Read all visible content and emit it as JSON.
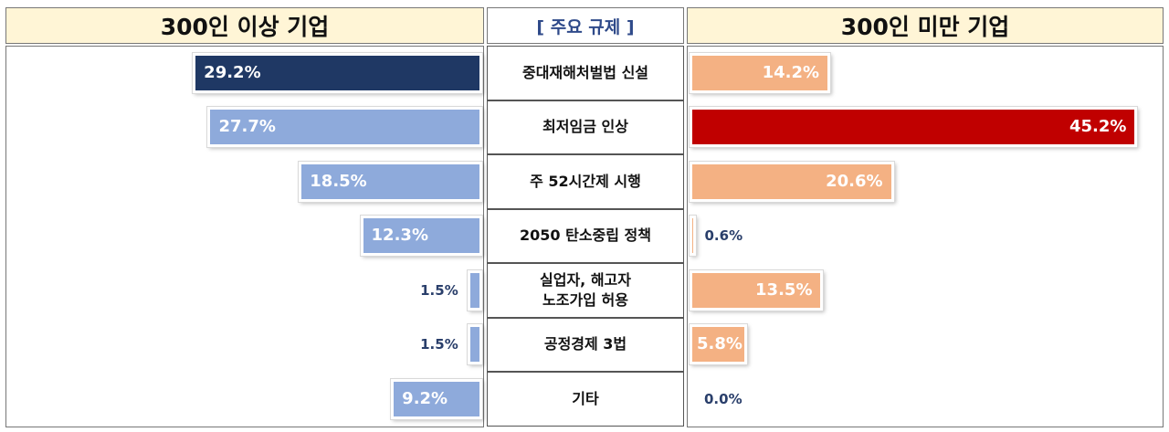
{
  "header": {
    "left_title": "300인 이상 기업",
    "middle_title": "[ 주요 규제 ]",
    "right_title": "300인 미만 기업"
  },
  "chart_data": {
    "type": "bar",
    "categories": [
      "중대재해처벌법 신설",
      "최저임금 인상",
      "주 52시간제 시행",
      "2050 탄소중립 정책",
      "실업자, 해고자\n노조가입 허용",
      "공정경제 3법",
      "기타"
    ],
    "series": [
      {
        "name": "300인 이상 기업",
        "values": [
          29.2,
          27.7,
          18.5,
          12.3,
          1.5,
          1.5,
          9.2
        ],
        "labels": [
          "29.2%",
          "27.7%",
          "18.5%",
          "12.3%",
          "1.5%",
          "1.5%",
          "9.2%"
        ],
        "color": "#8eaadb",
        "highlight_color": "#1f3864",
        "highlight_index": 0
      },
      {
        "name": "300인 미만 기업",
        "values": [
          14.2,
          45.2,
          20.6,
          0.6,
          13.5,
          5.8,
          0.0
        ],
        "labels": [
          "14.2%",
          "45.2%",
          "20.6%",
          "0.6%",
          "13.5%",
          "5.8%",
          "0.0%"
        ],
        "color": "#f4b183",
        "highlight_color": "#c00000",
        "highlight_index": 1
      }
    ],
    "layout": "butterfly",
    "grid": false,
    "legend": "none"
  }
}
